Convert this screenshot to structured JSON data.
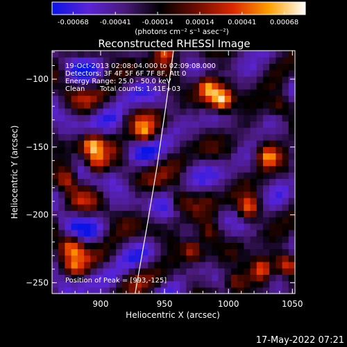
{
  "chart_data": {
    "type": "heatmap",
    "title": "Reconstructed RHESSI Image",
    "xlabel": "Heliocentric X (arcsec)",
    "ylabel": "Heliocentric Y (arcsec)",
    "xlim": [
      862,
      1052
    ],
    "ylim": [
      -258,
      -79
    ],
    "x_ticks": [
      900,
      950,
      1000,
      1050
    ],
    "y_ticks": [
      -100,
      -150,
      -200,
      -250
    ],
    "colorbar": {
      "ticks": [
        "-0.00068",
        "-0.00041",
        "-0.00014",
        "0.00014",
        "0.00041",
        "0.00068"
      ],
      "range": [
        -0.00068,
        0.00068
      ],
      "units": "(photons cm⁻² s⁻¹ asec⁻²)",
      "colors": [
        "#0a14e6",
        "#5a24d8",
        "#4a1a7a",
        "#000000",
        "#6e0c00",
        "#dc2800",
        "#ffa000",
        "#ffffff"
      ]
    },
    "annotations": {
      "time_range": "19-Oct-2013 02:08:04.000 to 02:09:08.000",
      "detectors": "Detectors: 3F 4F 5F 6F 7F 8F, Att 0",
      "energy": "Energy Range: 25.0 - 50.0 keV",
      "clean": "Clean",
      "counts": "Total counts: 1.41E+03",
      "peak": "Position of Peak = [993,-125]"
    },
    "peak": [
      993,
      -125
    ],
    "limb_curve": [
      [
        927,
        -258
      ],
      [
        936,
        -210
      ],
      [
        944,
        -165
      ],
      [
        951,
        -120
      ],
      [
        957,
        -79
      ]
    ],
    "sources": [
      {
        "x": 995,
        "y": -115,
        "v": 0.00068
      },
      {
        "x": 984,
        "y": -106,
        "v": 0.0005
      },
      {
        "x": 950,
        "y": -79,
        "v": 0.00052
      },
      {
        "x": 893,
        "y": -148,
        "v": 0.00045
      },
      {
        "x": 897,
        "y": -163,
        "v": 0.00035
      },
      {
        "x": 873,
        "y": -173,
        "v": 0.00032
      },
      {
        "x": 935,
        "y": -140,
        "v": 0.00024
      },
      {
        "x": 972,
        "y": -226,
        "v": 0.00032
      },
      {
        "x": 985,
        "y": -212,
        "v": 0.00026
      },
      {
        "x": 1016,
        "y": -195,
        "v": 0.00042
      },
      {
        "x": 1030,
        "y": -156,
        "v": 0.00036
      },
      {
        "x": 1040,
        "y": -120,
        "v": 0.00022
      },
      {
        "x": 1026,
        "y": -240,
        "v": 0.00048
      },
      {
        "x": 1045,
        "y": -236,
        "v": 0.00034
      },
      {
        "x": 878,
        "y": -222,
        "v": 0.00028
      },
      {
        "x": 880,
        "y": -240,
        "v": 0.00018
      },
      {
        "x": 962,
        "y": -188,
        "v": 0.00016
      },
      {
        "x": 1005,
        "y": -250,
        "v": 0.0002
      }
    ],
    "seed": 7
  },
  "footer": {
    "timestamp": "17-May-2022 07:21"
  }
}
